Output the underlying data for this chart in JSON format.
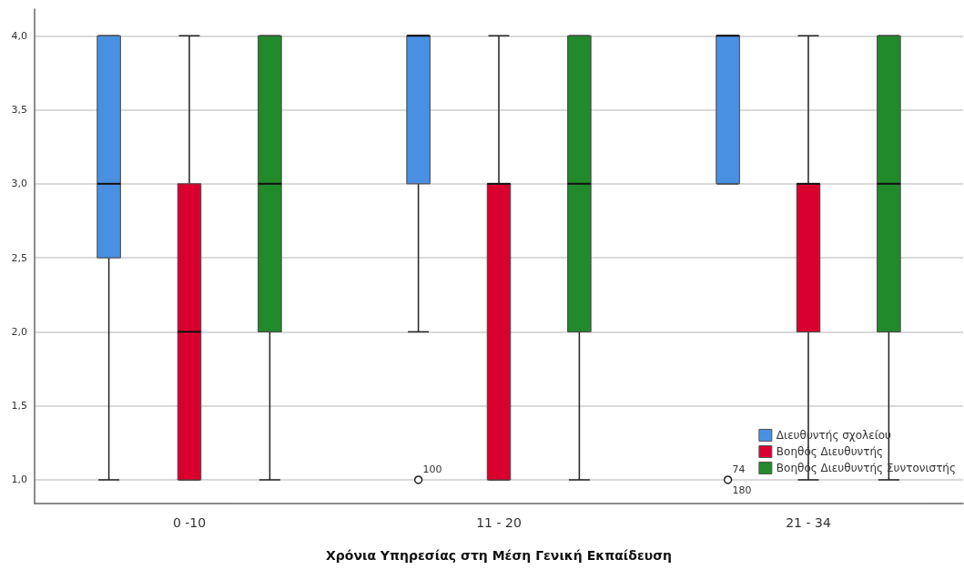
{
  "chart_data": {
    "type": "box",
    "xlabel": "Χρόνια Υπηρεσίας στη Μέση Γενική Εκπαίδευση",
    "categories": [
      "0 -10",
      "11 - 20",
      "21 - 34"
    ],
    "series": [
      {
        "name": "Διευθυντής σχολείου",
        "color": "#4a90e2",
        "boxes": [
          {
            "low": 1,
            "q1": 2.5,
            "median": 3,
            "q3": 4,
            "high": 4
          },
          {
            "low": 2,
            "q1": 3,
            "median": 4,
            "q3": 4,
            "high": 4,
            "outliers": [
              1
            ]
          },
          {
            "low": 3,
            "q1": 3,
            "median": 4,
            "q3": 4,
            "high": 4,
            "outliers": [
              1
            ]
          }
        ]
      },
      {
        "name": "Βοηθός Διευθυντής",
        "color": "#d9002f",
        "boxes": [
          {
            "low": 1,
            "q1": 1,
            "median": 2,
            "q3": 3,
            "high": 4
          },
          {
            "low": 1,
            "q1": 1,
            "median": 3,
            "q3": 3,
            "high": 4
          },
          {
            "low": 1,
            "q1": 2,
            "median": 3,
            "q3": 3,
            "high": 4
          }
        ]
      },
      {
        "name": "Βοηθός Διευθυντής Συντονιστής",
        "color": "#218a2b",
        "boxes": [
          {
            "low": 1,
            "q1": 2,
            "median": 3,
            "q3": 4,
            "high": 4
          },
          {
            "low": 1,
            "q1": 2,
            "median": 3,
            "q3": 4,
            "high": 4
          },
          {
            "low": 1,
            "q1": 2,
            "median": 3,
            "q3": 4,
            "high": 4
          }
        ]
      }
    ],
    "annotations": [
      "100",
      "74",
      "180"
    ],
    "ylim": [
      0.84,
      4.18
    ],
    "yticks": [
      {
        "value": 1,
        "label": "1,0"
      },
      {
        "value": 1.5,
        "label": "1,5"
      },
      {
        "value": 2,
        "label": "2,0"
      },
      {
        "value": 2.5,
        "label": "2,5"
      },
      {
        "value": 3,
        "label": "3,0"
      },
      {
        "value": 3.5,
        "label": "3,5"
      },
      {
        "value": 4,
        "label": "4,0"
      }
    ],
    "grid": "y",
    "legend": "bottom right"
  }
}
